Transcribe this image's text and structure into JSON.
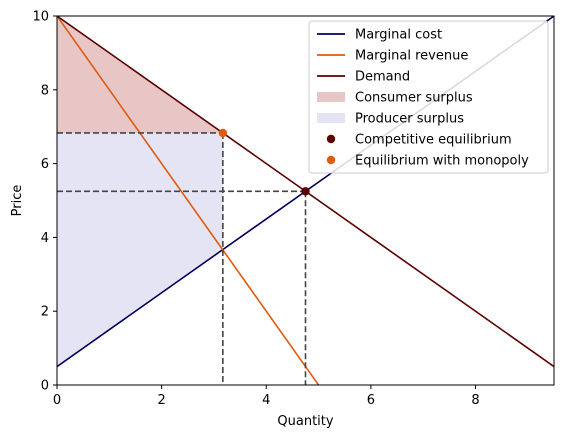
{
  "chart_data": {
    "type": "line",
    "xlabel": "Quantity",
    "ylabel": "Price",
    "xlim": [
      0,
      9.5
    ],
    "ylim": [
      0,
      10
    ],
    "xticks": [
      0,
      2,
      4,
      6,
      8
    ],
    "yticks": [
      0,
      2,
      4,
      6,
      8,
      10
    ],
    "grid": false,
    "legend_position": "top-right",
    "series": [
      {
        "name": "Marginal cost",
        "type": "line",
        "x": [
          0,
          9.5
        ],
        "y": [
          0.5,
          10
        ],
        "color": "#00005a"
      },
      {
        "name": "Marginal revenue",
        "type": "line",
        "x": [
          0,
          5
        ],
        "y": [
          10,
          0
        ],
        "color": "#e05a10"
      },
      {
        "name": "Demand",
        "type": "line",
        "x": [
          0,
          9.5
        ],
        "y": [
          10,
          0.5
        ],
        "color": "#5a0000"
      },
      {
        "name": "Consumer surplus",
        "type": "area",
        "points": [
          [
            0,
            10
          ],
          [
            3.17,
            6.83
          ],
          [
            0,
            6.83
          ]
        ],
        "color": "#e9c6c6"
      },
      {
        "name": "Producer surplus",
        "type": "area",
        "points": [
          [
            0,
            0.5
          ],
          [
            3.17,
            3.67
          ],
          [
            3.17,
            6.83
          ],
          [
            0,
            6.83
          ]
        ],
        "color": "#e4e4f4"
      },
      {
        "name": "Competitive equilibrium",
        "type": "scatter",
        "x": [
          4.75
        ],
        "y": [
          5.25
        ],
        "color": "#5a0000"
      },
      {
        "name": "Equilibrium with monopoly",
        "type": "scatter",
        "x": [
          3.17
        ],
        "y": [
          6.83
        ],
        "color": "#e05a10"
      }
    ],
    "reference_lines": [
      {
        "points": [
          [
            0,
            6.83
          ],
          [
            3.17,
            6.83
          ]
        ]
      },
      {
        "points": [
          [
            3.17,
            6.83
          ],
          [
            3.17,
            0
          ]
        ]
      },
      {
        "points": [
          [
            0,
            5.25
          ],
          [
            4.75,
            5.25
          ]
        ]
      },
      {
        "points": [
          [
            4.75,
            5.25
          ],
          [
            4.75,
            0
          ]
        ]
      }
    ]
  }
}
